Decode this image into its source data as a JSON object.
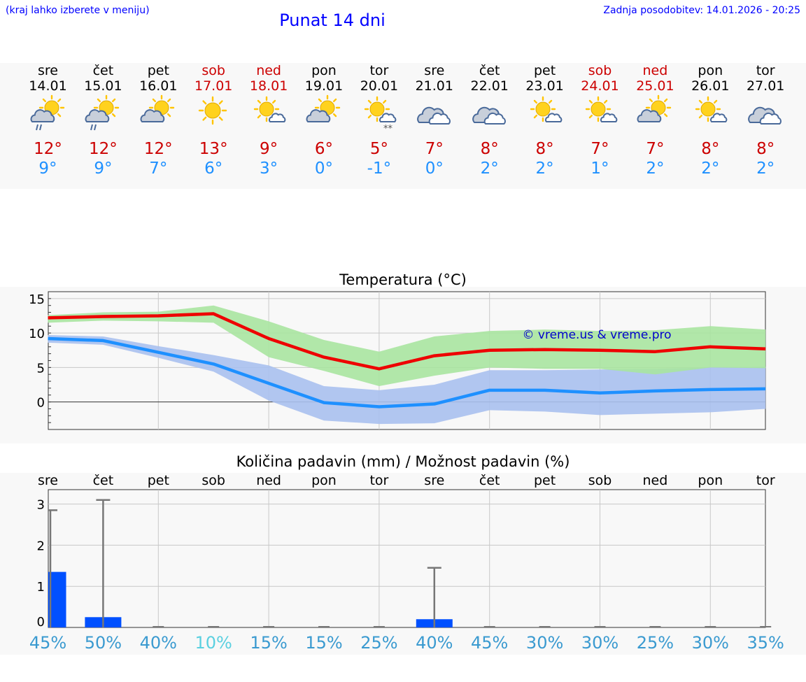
{
  "header": {
    "hint": "(kraj lahko izberete v meniju)",
    "title": "Punat 14 dni",
    "updated": "Zadnja posodobitev: 14.01.2026 - 20:25"
  },
  "days": [
    {
      "name": "sre",
      "date": "14.01",
      "weekend": false,
      "icon": "sun-cloud-rain-icon",
      "hi": "12°",
      "lo": "9°"
    },
    {
      "name": "čet",
      "date": "15.01",
      "weekend": false,
      "icon": "sun-cloud-rain-icon",
      "hi": "12°",
      "lo": "9°"
    },
    {
      "name": "pet",
      "date": "16.01",
      "weekend": false,
      "icon": "sun-cloud-icon",
      "hi": "12°",
      "lo": "7°"
    },
    {
      "name": "sob",
      "date": "17.01",
      "weekend": true,
      "icon": "sun-icon",
      "hi": "13°",
      "lo": "6°"
    },
    {
      "name": "ned",
      "date": "18.01",
      "weekend": true,
      "icon": "sun-small-cloud-icon",
      "hi": "9°",
      "lo": "3°"
    },
    {
      "name": "pon",
      "date": "19.01",
      "weekend": false,
      "icon": "sun-cloud-icon",
      "hi": "6°",
      "lo": "0°"
    },
    {
      "name": "tor",
      "date": "20.01",
      "weekend": false,
      "icon": "sun-cloud-snow-icon",
      "hi": "5°",
      "lo": "-1°"
    },
    {
      "name": "sre",
      "date": "21.01",
      "weekend": false,
      "icon": "cloud-icon",
      "hi": "7°",
      "lo": "0°"
    },
    {
      "name": "čet",
      "date": "22.01",
      "weekend": false,
      "icon": "cloud-icon",
      "hi": "8°",
      "lo": "2°"
    },
    {
      "name": "pet",
      "date": "23.01",
      "weekend": false,
      "icon": "sun-small-cloud-icon",
      "hi": "8°",
      "lo": "2°"
    },
    {
      "name": "sob",
      "date": "24.01",
      "weekend": true,
      "icon": "sun-small-cloud-icon",
      "hi": "7°",
      "lo": "1°"
    },
    {
      "name": "ned",
      "date": "25.01",
      "weekend": true,
      "icon": "sun-cloud-icon",
      "hi": "7°",
      "lo": "2°"
    },
    {
      "name": "pon",
      "date": "26.01",
      "weekend": false,
      "icon": "sun-small-cloud-icon",
      "hi": "8°",
      "lo": "2°"
    },
    {
      "name": "tor",
      "date": "27.01",
      "weekend": false,
      "icon": "cloud-icon",
      "hi": "8°",
      "lo": "2°"
    }
  ],
  "colors": {
    "high": "#ee0000",
    "low": "#1e90ff",
    "high_band": "#a8e4a0",
    "low_band": "#a8c0ee",
    "bar": "#0050ff",
    "weekend": "#cc0000",
    "pct": "#3a9ad0",
    "pct_low": "#5ad0e0"
  },
  "chart_data": [
    {
      "type": "line",
      "title": "Temperatura (°C)",
      "watermark": "© vreme.us & vreme.pro",
      "x": [
        0,
        1,
        2,
        3,
        4,
        5,
        6,
        7,
        8,
        9,
        10,
        11,
        12,
        13
      ],
      "ylim": [
        -4,
        16
      ],
      "yticks": [
        0,
        5,
        10,
        15
      ],
      "series": [
        {
          "name": "max",
          "values": [
            12.2,
            12.4,
            12.5,
            12.8,
            9.2,
            6.5,
            4.8,
            6.7,
            7.5,
            7.6,
            7.5,
            7.3,
            8.0,
            7.7
          ],
          "band_low": [
            11.5,
            11.8,
            11.7,
            11.5,
            6.5,
            4.5,
            2.3,
            3.8,
            5.0,
            4.8,
            4.8,
            4.0,
            5.0,
            4.9
          ],
          "band_high": [
            12.6,
            13.0,
            13.1,
            14.0,
            11.7,
            9.0,
            7.3,
            9.5,
            10.3,
            10.5,
            10.3,
            10.4,
            11.0,
            10.5
          ]
        },
        {
          "name": "min",
          "values": [
            9.2,
            8.9,
            7.2,
            5.5,
            2.7,
            -0.1,
            -0.7,
            -0.3,
            1.7,
            1.7,
            1.3,
            1.6,
            1.8,
            1.9
          ],
          "band_low": [
            8.6,
            8.3,
            6.4,
            4.4,
            0.2,
            -2.7,
            -3.2,
            -3.1,
            -1.2,
            -1.4,
            -1.9,
            -1.7,
            -1.5,
            -1.0
          ],
          "band_high": [
            9.7,
            9.5,
            8.1,
            6.8,
            5.3,
            2.3,
            1.7,
            2.5,
            4.6,
            4.6,
            4.7,
            4.8,
            5.0,
            5.1
          ]
        }
      ]
    },
    {
      "type": "bar",
      "title": "Količina padavin (mm) / Možnost padavin (%)",
      "categories": [
        "sre",
        "čet",
        "pet",
        "sob",
        "ned",
        "pon",
        "tor",
        "sre",
        "čet",
        "pet",
        "sob",
        "ned",
        "pon",
        "tor"
      ],
      "values": [
        1.35,
        0.25,
        0,
        0,
        0,
        0,
        0,
        0.2,
        0,
        0,
        0,
        0,
        0,
        0
      ],
      "error_high": [
        2.85,
        3.1,
        0,
        0,
        0,
        0,
        0,
        1.45,
        0,
        0,
        0,
        0,
        0,
        0
      ],
      "probability": [
        "45%",
        "50%",
        "40%",
        "10%",
        "15%",
        "15%",
        "25%",
        "40%",
        "45%",
        "30%",
        "30%",
        "25%",
        "30%",
        "35%"
      ],
      "ylim": [
        0,
        3.35
      ],
      "yticks": [
        0,
        1,
        2,
        3
      ]
    }
  ]
}
